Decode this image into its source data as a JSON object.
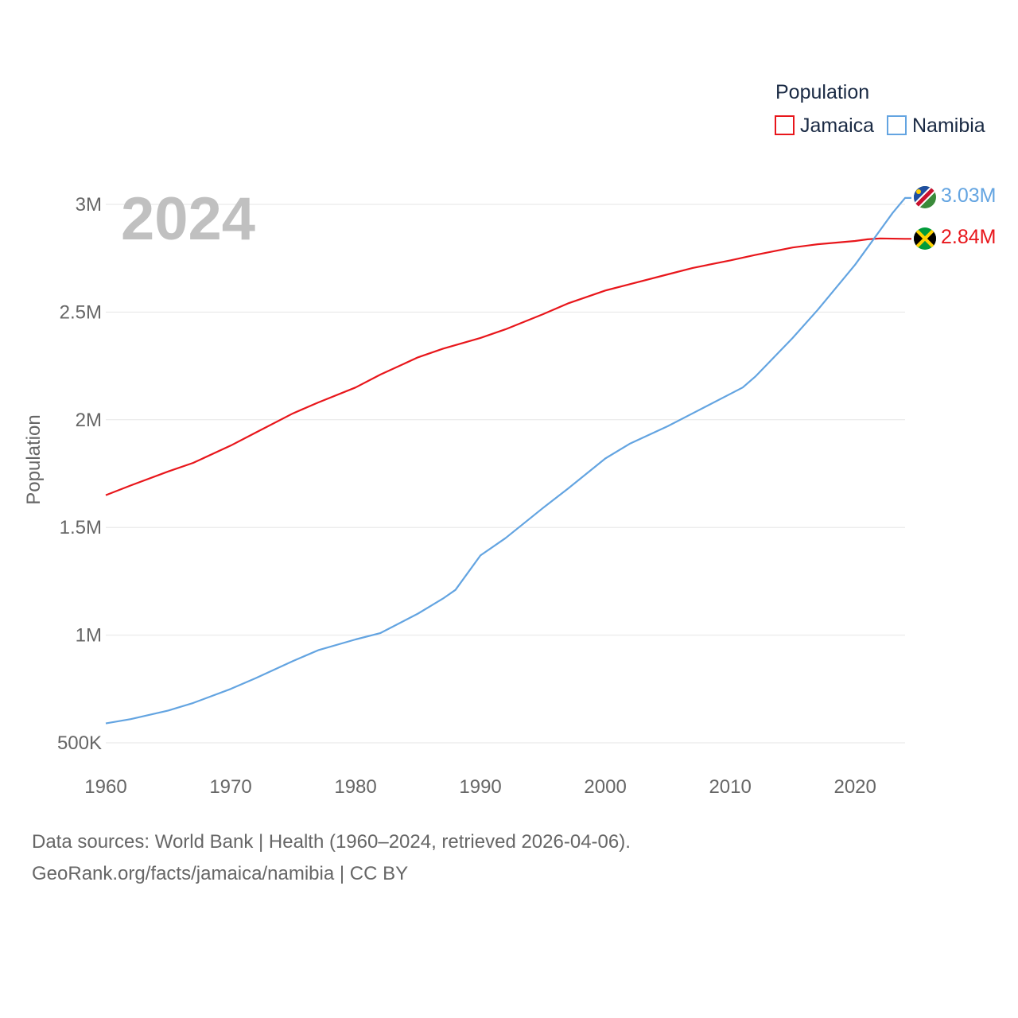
{
  "chart_data": {
    "type": "line",
    "title": "2024",
    "ylabel": "Population",
    "xlabel": "",
    "legend_title": "Population",
    "legend_position": "top-right",
    "x_ticks": [
      "1960",
      "1970",
      "1980",
      "1990",
      "2000",
      "2010",
      "2020"
    ],
    "y_ticks": [
      {
        "value": 500000,
        "label": "500K"
      },
      {
        "value": 1000000,
        "label": "1M"
      },
      {
        "value": 1500000,
        "label": "1.5M"
      },
      {
        "value": 2000000,
        "label": "2M"
      },
      {
        "value": 2500000,
        "label": "2.5M"
      },
      {
        "value": 3000000,
        "label": "3M"
      }
    ],
    "xlim": [
      1960,
      2024
    ],
    "ylim": [
      500000,
      3000000
    ],
    "grid": true,
    "series": [
      {
        "name": "Jamaica",
        "color": "#e8161b",
        "end_label": "2.84M",
        "flag": "jamaica-flag",
        "points": [
          [
            1960,
            1650000
          ],
          [
            1962,
            1695000
          ],
          [
            1965,
            1760000
          ],
          [
            1967,
            1800000
          ],
          [
            1970,
            1880000
          ],
          [
            1972,
            1940000
          ],
          [
            1975,
            2030000
          ],
          [
            1977,
            2080000
          ],
          [
            1980,
            2150000
          ],
          [
            1982,
            2210000
          ],
          [
            1985,
            2290000
          ],
          [
            1987,
            2330000
          ],
          [
            1990,
            2380000
          ],
          [
            1992,
            2420000
          ],
          [
            1995,
            2490000
          ],
          [
            1997,
            2540000
          ],
          [
            2000,
            2600000
          ],
          [
            2002,
            2630000
          ],
          [
            2005,
            2675000
          ],
          [
            2007,
            2705000
          ],
          [
            2010,
            2740000
          ],
          [
            2012,
            2765000
          ],
          [
            2015,
            2800000
          ],
          [
            2017,
            2815000
          ],
          [
            2019,
            2825000
          ],
          [
            2020,
            2830000
          ],
          [
            2021,
            2838000
          ],
          [
            2022,
            2842000
          ],
          [
            2024,
            2840000
          ]
        ]
      },
      {
        "name": "Namibia",
        "color": "#63a4e1",
        "end_label": "3.03M",
        "flag": "namibia-flag",
        "points": [
          [
            1960,
            590000
          ],
          [
            1962,
            610000
          ],
          [
            1965,
            650000
          ],
          [
            1967,
            685000
          ],
          [
            1970,
            750000
          ],
          [
            1972,
            800000
          ],
          [
            1975,
            880000
          ],
          [
            1977,
            930000
          ],
          [
            1980,
            980000
          ],
          [
            1982,
            1010000
          ],
          [
            1985,
            1100000
          ],
          [
            1987,
            1170000
          ],
          [
            1988,
            1210000
          ],
          [
            1990,
            1370000
          ],
          [
            1992,
            1450000
          ],
          [
            1995,
            1590000
          ],
          [
            1997,
            1680000
          ],
          [
            2000,
            1820000
          ],
          [
            2002,
            1890000
          ],
          [
            2005,
            1970000
          ],
          [
            2007,
            2030000
          ],
          [
            2010,
            2120000
          ],
          [
            2011,
            2150000
          ],
          [
            2012,
            2200000
          ],
          [
            2015,
            2380000
          ],
          [
            2017,
            2510000
          ],
          [
            2019,
            2650000
          ],
          [
            2020,
            2720000
          ],
          [
            2021,
            2800000
          ],
          [
            2022,
            2880000
          ],
          [
            2023,
            2960000
          ],
          [
            2024,
            3030000
          ]
        ]
      }
    ]
  },
  "source": {
    "line1": "Data sources: World Bank | Health (1960–2024, retrieved 2026-04-06).",
    "line2": "GeoRank.org/facts/jamaica/namibia | CC BY"
  }
}
